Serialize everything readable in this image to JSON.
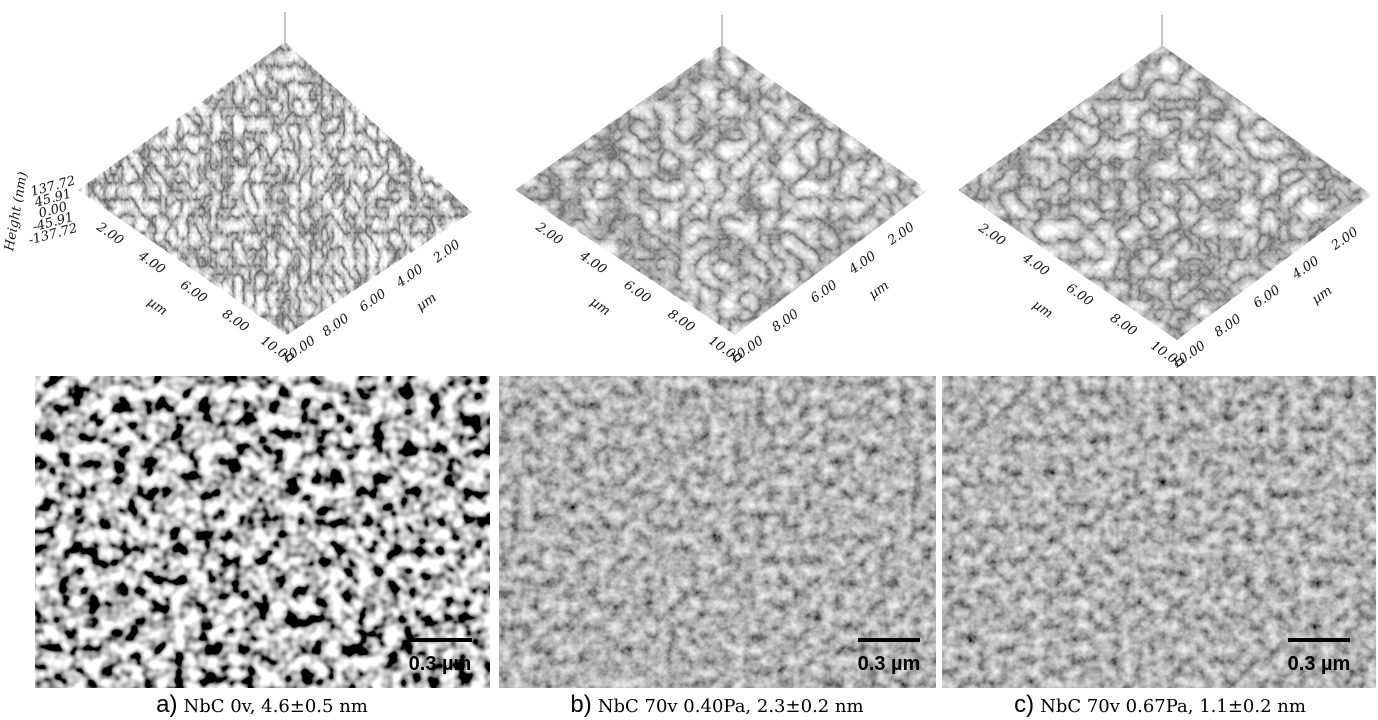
{
  "panels": [
    {
      "afm": {
        "x_ticks": [
          "2.00",
          "4.00",
          "6.00",
          "8.00",
          "10.00"
        ],
        "x_unit": "µm",
        "y_ticks": [
          "2.00",
          "4.00",
          "6.00",
          "8.00",
          "10.00"
        ],
        "y_unit": "µm",
        "z_axis": {
          "title": "Height (nm)",
          "ticks": [
            "137.72",
            "45.91",
            "0.00",
            "-45.91",
            "-137.72"
          ]
        }
      },
      "sem": {
        "scale_bar": "0.3 µm"
      },
      "caption": {
        "letter": "a)",
        "text": "NbC 0v, 4.6±0.5 nm"
      }
    },
    {
      "afm": {
        "x_ticks": [
          "2.00",
          "4.00",
          "6.00",
          "8.00",
          "10.00"
        ],
        "x_unit": "µm",
        "y_ticks": [
          "2.00",
          "4.00",
          "6.00",
          "8.00",
          "10.00"
        ],
        "y_unit": "µm"
      },
      "sem": {
        "scale_bar": "0.3 µm"
      },
      "caption": {
        "letter": "b)",
        "text": "NbC 70v 0.40Pa, 2.3±0.2 nm"
      }
    },
    {
      "afm": {
        "x_ticks": [
          "2.00",
          "4.00",
          "6.00",
          "8.00",
          "10.00"
        ],
        "x_unit": "µm",
        "y_ticks": [
          "2.00",
          "4.00",
          "6.00",
          "8.00",
          "10.00"
        ],
        "y_unit": "µm"
      },
      "sem": {
        "scale_bar": "0.3 µm"
      },
      "caption": {
        "letter": "c)",
        "text": "NbC 70v 0.67Pa, 1.1±0.2 nm"
      }
    }
  ]
}
